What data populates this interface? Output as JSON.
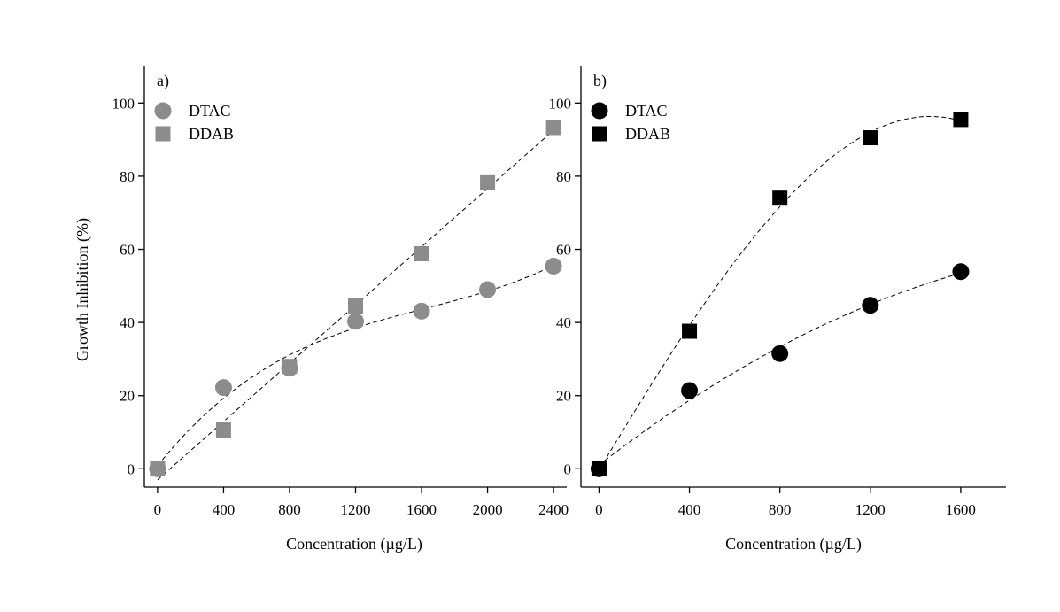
{
  "figure": {
    "ylabel": "Growth Inhibition (%)",
    "xlabel": "Concentration (µg/L)"
  },
  "chart_data": [
    {
      "type": "scatter",
      "panel_label": "a)",
      "xlabel": "Concentration (µg/L)",
      "ylabel": "Growth Inhibition (%)",
      "xlim": [
        -80,
        2480
      ],
      "ylim": [
        -5,
        110
      ],
      "xticks": [
        0,
        400,
        800,
        1200,
        1600,
        2000,
        2400
      ],
      "yticks": [
        0,
        20,
        40,
        60,
        80,
        100
      ],
      "grid": false,
      "legend_position": "top-left",
      "color": "#8c8c8c",
      "series": [
        {
          "name": "DTAC",
          "marker": "circle",
          "x": [
            0,
            400,
            800,
            1200,
            1600,
            2000,
            2400
          ],
          "y": [
            0,
            22.2,
            27.5,
            40.3,
            43.1,
            49.0,
            55.4
          ],
          "fit": "poly3"
        },
        {
          "name": "DDAB",
          "marker": "square",
          "x": [
            0,
            400,
            800,
            1200,
            1600,
            2000,
            2400
          ],
          "y": [
            0,
            10.6,
            28.0,
            44.5,
            58.8,
            78.2,
            93.3
          ],
          "fit": "linear"
        }
      ]
    },
    {
      "type": "scatter",
      "panel_label": "b)",
      "xlabel": "Concentration (µg/L)",
      "ylabel": "",
      "xlim": [
        -80,
        1800
      ],
      "ylim": [
        -5,
        110
      ],
      "xticks": [
        0,
        400,
        800,
        1200,
        1600
      ],
      "yticks": [
        0,
        20,
        40,
        60,
        80,
        100
      ],
      "grid": false,
      "legend_position": "top-left",
      "color": "#000000",
      "series": [
        {
          "name": "DTAC",
          "marker": "circle",
          "x": [
            0,
            400,
            800,
            1200,
            1600
          ],
          "y": [
            0,
            21.4,
            31.5,
            44.7,
            53.9
          ],
          "fit": "poly2"
        },
        {
          "name": "DDAB",
          "marker": "square",
          "x": [
            0,
            400,
            800,
            1200,
            1600
          ],
          "y": [
            0,
            37.6,
            74.0,
            90.5,
            95.5
          ],
          "fit": "poly3"
        }
      ]
    }
  ]
}
